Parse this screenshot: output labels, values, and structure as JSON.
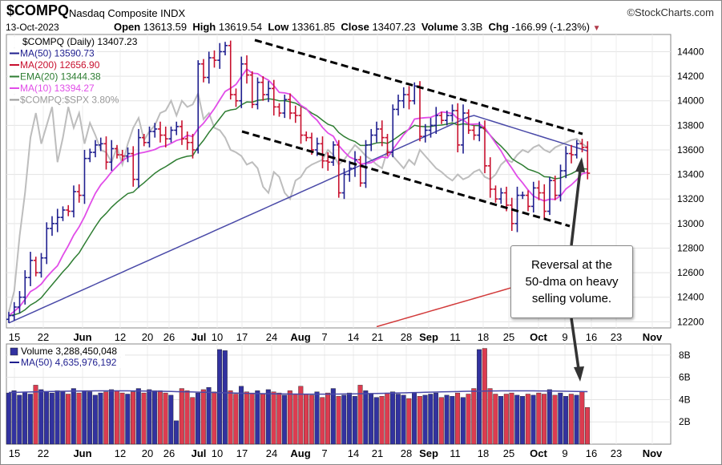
{
  "header": {
    "symbol": "$COMPQ",
    "name": "Nasdaq Composite INDX",
    "credit": "©StockCharts.com",
    "date": "13-Oct-2023",
    "open_label": "Open",
    "open": "13613.59",
    "high_label": "High",
    "high": "13619.54",
    "low_label": "Low",
    "low": "13361.85",
    "close_label": "Close",
    "close": "13407.23",
    "volume_label": "Volume",
    "volume": "3.3B",
    "chg_label": "Chg",
    "chg": "-166.99 (-1.23%)"
  },
  "annotation": {
    "line1": "Reversal at the",
    "line2": "50-dma on heavy",
    "line3": "selling volume."
  },
  "colors": {
    "up": "#1f1f8f",
    "down": "#c8102e",
    "ma50": "#4a4aa8",
    "ma200": "#d23b3b",
    "ema20": "#2e7d32",
    "ma10": "#e14de8",
    "spx": "#bdbdbd",
    "vol_up": "#3232a0",
    "vol_down": "#dc3c50"
  },
  "chart_data": [
    {
      "type": "candlestick",
      "title": "$COMPQ (Daily) 13407.23",
      "legend": [
        {
          "label": "$COMPQ (Daily) 13407.23",
          "color": "#000000"
        },
        {
          "label": "MA(50) 13590.73",
          "color": "#1f1f8f"
        },
        {
          "label": "MA(200) 12656.90",
          "color": "#c8102e"
        },
        {
          "label": "EMA(20) 13444.38",
          "color": "#2e7d32"
        },
        {
          "label": "MA(10) 13394.27",
          "color": "#e14de8"
        },
        {
          "label": "$COMPQ:$SPX 3.80%",
          "color": "#999999"
        }
      ],
      "legend_position": "top-left",
      "y_ticks": [
        12200,
        12400,
        12600,
        12800,
        13000,
        13200,
        13400,
        13600,
        13800,
        14000,
        14200,
        14400
      ],
      "ylim": [
        12150,
        14540
      ],
      "x_tick_labels": [
        "15",
        "22",
        "Jun",
        "12",
        "20",
        "26",
        "Jul",
        "10",
        "17",
        "24",
        "Aug",
        "7",
        "14",
        "21",
        "28",
        "Sep",
        "11",
        "18",
        "25",
        "Oct",
        "9",
        "16",
        "23",
        "Nov"
      ],
      "closes": [
        12250,
        12320,
        12400,
        12560,
        12700,
        12600,
        12720,
        12960,
        13000,
        13050,
        13110,
        13100,
        13260,
        13230,
        13530,
        13580,
        13640,
        13650,
        13500,
        13610,
        13560,
        13550,
        13570,
        13360,
        13700,
        13660,
        13750,
        13770,
        13720,
        13690,
        13760,
        13790,
        13690,
        13660,
        13600,
        14300,
        14190,
        14350,
        14330,
        14400,
        14450,
        14050,
        14000,
        14300,
        14210,
        13970,
        14150,
        14050,
        14100,
        13950,
        13900,
        14010,
        13900,
        13880,
        13720,
        13700,
        13600,
        13650,
        13510,
        13500,
        13640,
        13250,
        13400,
        13450,
        13520,
        13330,
        13640,
        13720,
        13770,
        13700,
        13580,
        13930,
        14000,
        14050,
        14000,
        14120,
        13710,
        13760,
        13800,
        13880,
        13840,
        13880,
        13920,
        13640,
        13900,
        13760,
        13720,
        13780,
        13470,
        13280,
        13200,
        13250,
        13150,
        13000,
        13230,
        13230,
        13140,
        13290,
        13250,
        13100,
        13350,
        13230,
        13430,
        13570,
        13560,
        13650,
        13620,
        13410
      ],
      "annotation_text": "Reversal at the 50-dma on heavy selling volume.",
      "overlays": {
        "ma50_start": 12190,
        "ma50_end": 13590.73,
        "ma200_end": 12656.9
      }
    },
    {
      "type": "bar",
      "title": "Volume 3,288,450,048",
      "legend": [
        {
          "label": "Volume 3,288,450,048",
          "color": "#000000"
        },
        {
          "label": "MA(50) 4,635,976,192",
          "color": "#1f1f8f"
        }
      ],
      "y_ticks": [
        "2B",
        "4B",
        "6B",
        "8B"
      ],
      "ylim": [
        0,
        9
      ],
      "units": "billions",
      "volumes": [
        4.6,
        4.8,
        4.4,
        4.7,
        4.5,
        5.3,
        4.9,
        4.7,
        4.6,
        4.8,
        4.7,
        4.5,
        5.0,
        4.6,
        4.8,
        4.7,
        4.4,
        4.6,
        4.7,
        4.9,
        4.8,
        4.6,
        4.5,
        4.7,
        5.0,
        4.6,
        4.9,
        4.8,
        4.8,
        4.6,
        4.4,
        2.1,
        5.0,
        4.8,
        4.2,
        4.6,
        4.9,
        5.1,
        4.7,
        4.6,
        4.9,
        4.8,
        4.5,
        5.2,
        4.7,
        4.6,
        4.8,
        4.5,
        4.9,
        4.7,
        4.6,
        4.4,
        4.8,
        4.5,
        4.3,
        4.5,
        4.4,
        4.7,
        4.2,
        4.6,
        4.5,
        4.3,
        4.4,
        4.6,
        4.3,
        5.3,
        4.8,
        4.5,
        4.2,
        4.3,
        4.6,
        4.7,
        4.5,
        4.4,
        4.1,
        4.6,
        4.3,
        4.4,
        4.5,
        4.6,
        4.2,
        4.4,
        4.3,
        4.6,
        4.2,
        4.5,
        4.4,
        4.6,
        4.2,
        4.4,
        4.5,
        4.3,
        4.5,
        4.6,
        4.4,
        4.3,
        4.5,
        4.4,
        4.6,
        4.5,
        4.4,
        4.4,
        4.6,
        4.3,
        4.5,
        4.4,
        4.7,
        3.3
      ],
      "spikes": {
        "39": 8.5,
        "40": 8.4,
        "54": 5.2,
        "60": 5.0,
        "86": 5.0,
        "87": 8.5,
        "88": 8.6,
        "89": 5.0,
        "100": 4.9
      },
      "ma50_value": 4.64
    }
  ]
}
